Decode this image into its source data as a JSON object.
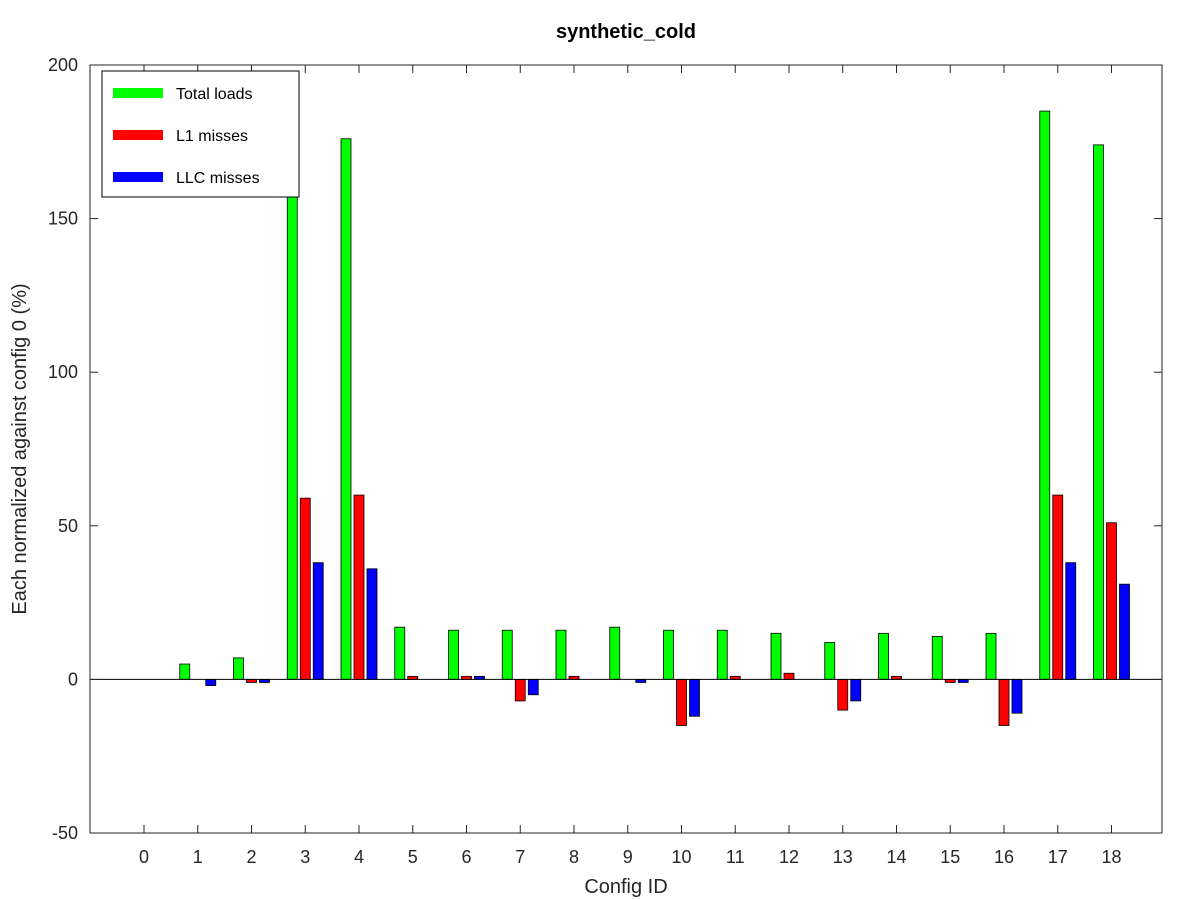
{
  "chart_data": {
    "type": "bar",
    "title": "synthetic_cold",
    "xlabel": "Config ID",
    "ylabel": "Each normalized against config 0 (%)",
    "categories": [
      "0",
      "1",
      "2",
      "3",
      "4",
      "5",
      "6",
      "7",
      "8",
      "9",
      "10",
      "11",
      "12",
      "13",
      "14",
      "15",
      "16",
      "17",
      "18"
    ],
    "ylim": [
      -50,
      200
    ],
    "yticks": [
      -50,
      0,
      50,
      100,
      150,
      200
    ],
    "grid": false,
    "legend_position": "top-left",
    "series": [
      {
        "name": "Total loads",
        "color": "#00ff00",
        "values": [
          0,
          5,
          7,
          165,
          176,
          17,
          16,
          16,
          16,
          17,
          16,
          16,
          15,
          12,
          15,
          14,
          15,
          185,
          174
        ]
      },
      {
        "name": "L1 misses",
        "color": "#ff0000",
        "values": [
          0,
          0,
          -1,
          59,
          60,
          1,
          1,
          -7,
          1,
          0,
          -15,
          1,
          2,
          -10,
          1,
          -1,
          -15,
          60,
          51
        ]
      },
      {
        "name": "LLC misses",
        "color": "#0000ff",
        "values": [
          0,
          -2,
          -1,
          38,
          36,
          0,
          1,
          -5,
          0,
          -1,
          -12,
          0,
          0,
          -7,
          0,
          -1,
          -11,
          38,
          31
        ]
      }
    ]
  }
}
